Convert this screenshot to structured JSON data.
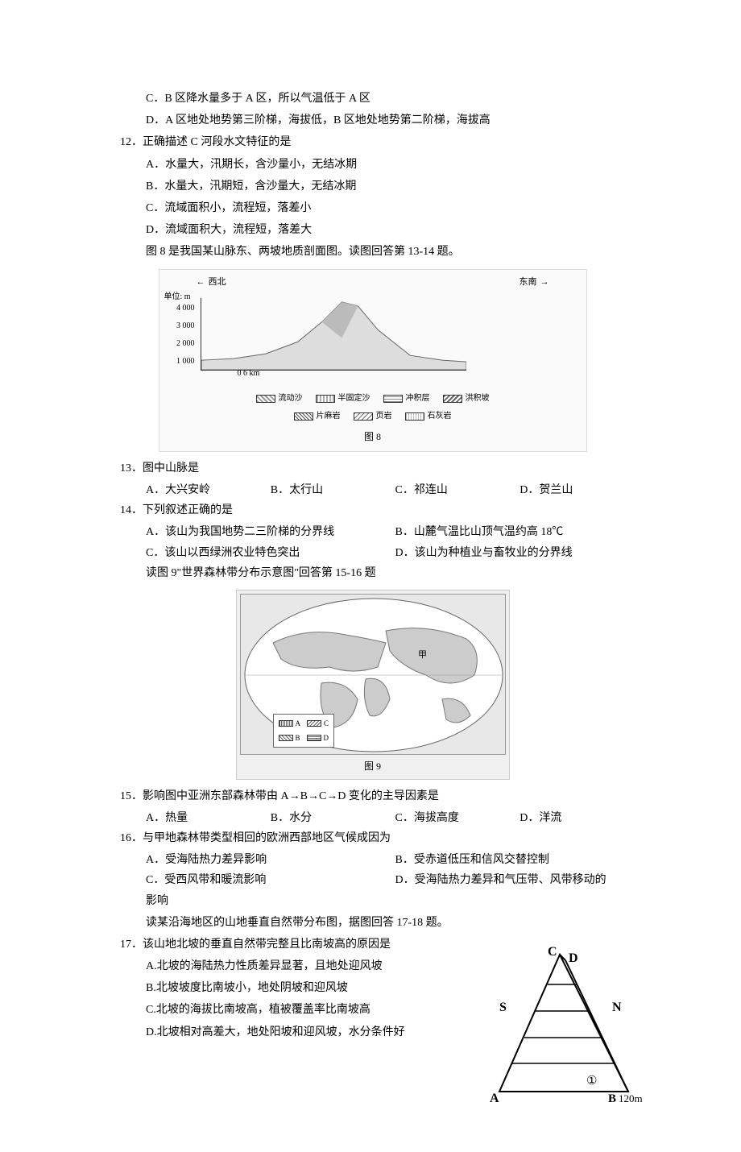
{
  "pre_context": {
    "option_c": "C．B 区降水量多于 A 区，所以气温低于 A 区",
    "option_d": "D．A 区地处地势第三阶梯，海拔低，B 区地处地势第二阶梯，海拔高"
  },
  "q12": {
    "stem": "12．正确描述 C 河段水文特征的是",
    "a": "A．水量大，汛期长，含沙量小，无结冰期",
    "b": "B．水量大，汛期短，含沙量大，无结冰期",
    "c": "C．流域面积小，流程短，落差小",
    "d": "D．流域面积大，流程短，落差大",
    "intro8": "图 8 是我国某山脉东、两坡地质剖面图。读图回答第 13-14 题。"
  },
  "figure8": {
    "dir_left": "西北",
    "dir_right": "东南",
    "unit_label": "单位: m",
    "y_ticks": [
      "4 000",
      "3 000",
      "2 000",
      "1 000"
    ],
    "y_range": [
      0,
      4000
    ],
    "scale": "0  6 km",
    "legend": [
      {
        "label": "流动沙",
        "pattern": "repeating-linear-gradient(45deg,#999 0 2px,#fff 2px 4px)"
      },
      {
        "label": "半固定沙",
        "pattern": "repeating-linear-gradient(90deg,#aaa 0 2px,#fff 2px 4px)"
      },
      {
        "label": "冲积层",
        "pattern": "repeating-linear-gradient(0deg,#888 0 1px,#fff 1px 3px)"
      },
      {
        "label": "洪积坡",
        "pattern": "repeating-linear-gradient(135deg,#666 0 2px,#fff 2px 4px)"
      },
      {
        "label": "片麻岩",
        "pattern": "repeating-linear-gradient(45deg,#555 0 1px,#fff 1px 3px)"
      },
      {
        "label": "页岩",
        "pattern": "repeating-linear-gradient(135deg,#777 0 1px,#fff 1px 4px)"
      },
      {
        "label": "石灰岩",
        "pattern": "repeating-linear-gradient(90deg,#bbb 0 1px,#fff 1px 3px)"
      }
    ],
    "caption": "图 8",
    "colors": {
      "axis": "#333333",
      "bg": "#fafafa"
    }
  },
  "q13": {
    "stem": "13．图中山脉是",
    "a": "A．大兴安岭",
    "b": "B．太行山",
    "c": "C．祁连山",
    "d": "D．贺兰山"
  },
  "q14": {
    "stem": "14．下列叙述正确的是",
    "a": "A．该山为我国地势二三阶梯的分界线",
    "b": "B．山麓气温比山顶气温约高 18℃",
    "c": "C．该山以西绿洲农业特色突出",
    "d": "D．该山为种植业与畜牧业的分界线",
    "intro9": "读图 9\"世界森林带分布示意图\"回答第 15-16 题"
  },
  "figure9": {
    "legend": [
      "A",
      "B",
      "C",
      "D"
    ],
    "legend_patterns": [
      "repeating-linear-gradient(90deg,#666 0 1px,#fff 1px 2px)",
      "repeating-linear-gradient(45deg,#666 0 1px,#fff 1px 3px)",
      "repeating-linear-gradient(135deg,#666 0 1px,#fff 1px 3px)",
      "repeating-linear-gradient(0deg,#666 0 1px,#fff 1px 2px)"
    ],
    "caption": "图 9",
    "marker": "甲"
  },
  "q15": {
    "stem": "15．影响图中亚洲东部森林带由 A→B→C→D 变化的主导因素是",
    "a": "A．热量",
    "b": "B．水分",
    "c": "C．海拔高度",
    "d": "D．洋流"
  },
  "q16": {
    "stem": "16．与甲地森林带类型相回的欧洲西部地区气候成因为",
    "a": "A．受海陆热力差异影响",
    "b": "B．受赤道低压和信风交替控制",
    "c": "C．受西风带和暖流影响",
    "d": "D．受海陆热力差异和气压带、风带移动的",
    "d_cont": "影响",
    "intro17": "读某沿海地区的山地垂直自然带分布图，据图回答 17-18 题。"
  },
  "q17": {
    "stem": "17．该山地北坡的垂直自然带完整且比南坡高的原因是",
    "a": "A.北坡的海陆热力性质差异显著，且地处迎风坡",
    "b": "B.北坡坡度比南坡小，地处阴坡和迎风坡",
    "c": "C.北坡的海拔比南坡高，植被覆盖率比南坡高",
    "d": "D.北坡相对高差大，地处阳坡和迎风坡，水分条件好"
  },
  "triangle": {
    "labels": {
      "top_left": "C",
      "top_right": "D",
      "left": "S",
      "right": "N",
      "bot_left": "A",
      "bot_right": "B",
      "elevation": "120m",
      "belt_mark": "①"
    },
    "stroke": "#000000",
    "stroke_width": 2
  }
}
